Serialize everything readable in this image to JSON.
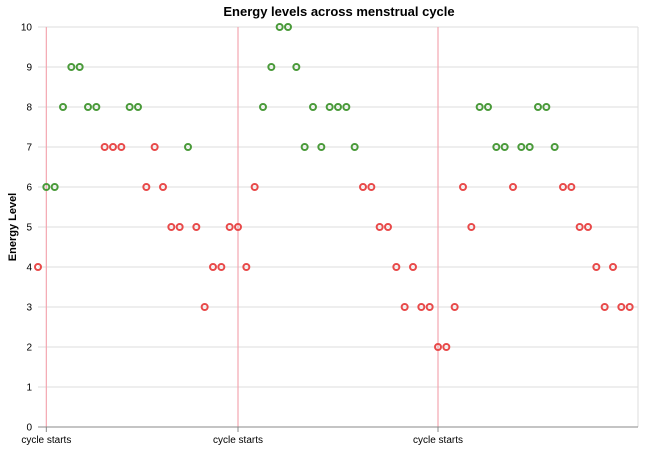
{
  "chart_data": {
    "type": "scatter",
    "title": "Energy levels across menstrual cycle",
    "xlabel": "",
    "ylabel": "Energy Level",
    "ylim": [
      0,
      10
    ],
    "yticks": [
      0,
      1,
      2,
      3,
      4,
      5,
      6,
      7,
      8,
      9,
      10
    ],
    "xlim": [
      0,
      72
    ],
    "grid": true,
    "cycle_starts": [
      1,
      24,
      48
    ],
    "cycle_start_label": "cycle starts",
    "colors": {
      "high": "#4a9a3a",
      "low": "#e84a4a",
      "cycle_rule": "#f4a6b0"
    },
    "points": [
      {
        "x": 0,
        "y": 4,
        "c": "low"
      },
      {
        "x": 1,
        "y": 6,
        "c": "high"
      },
      {
        "x": 2,
        "y": 6,
        "c": "high"
      },
      {
        "x": 3,
        "y": 8,
        "c": "high"
      },
      {
        "x": 4,
        "y": 9,
        "c": "high"
      },
      {
        "x": 5,
        "y": 9,
        "c": "high"
      },
      {
        "x": 6,
        "y": 8,
        "c": "high"
      },
      {
        "x": 7,
        "y": 8,
        "c": "high"
      },
      {
        "x": 8,
        "y": 7,
        "c": "low"
      },
      {
        "x": 9,
        "y": 7,
        "c": "low"
      },
      {
        "x": 10,
        "y": 7,
        "c": "low"
      },
      {
        "x": 11,
        "y": 8,
        "c": "high"
      },
      {
        "x": 12,
        "y": 8,
        "c": "high"
      },
      {
        "x": 13,
        "y": 6,
        "c": "low"
      },
      {
        "x": 14,
        "y": 7,
        "c": "low"
      },
      {
        "x": 15,
        "y": 6,
        "c": "low"
      },
      {
        "x": 16,
        "y": 5,
        "c": "low"
      },
      {
        "x": 17,
        "y": 5,
        "c": "low"
      },
      {
        "x": 18,
        "y": 7,
        "c": "high"
      },
      {
        "x": 19,
        "y": 5,
        "c": "low"
      },
      {
        "x": 20,
        "y": 3,
        "c": "low"
      },
      {
        "x": 21,
        "y": 4,
        "c": "low"
      },
      {
        "x": 22,
        "y": 4,
        "c": "low"
      },
      {
        "x": 23,
        "y": 5,
        "c": "low"
      },
      {
        "x": 24,
        "y": 5,
        "c": "low"
      },
      {
        "x": 25,
        "y": 4,
        "c": "low"
      },
      {
        "x": 26,
        "y": 6,
        "c": "low"
      },
      {
        "x": 27,
        "y": 8,
        "c": "high"
      },
      {
        "x": 28,
        "y": 9,
        "c": "high"
      },
      {
        "x": 29,
        "y": 10,
        "c": "high"
      },
      {
        "x": 30,
        "y": 10,
        "c": "high"
      },
      {
        "x": 31,
        "y": 9,
        "c": "high"
      },
      {
        "x": 32,
        "y": 7,
        "c": "high"
      },
      {
        "x": 33,
        "y": 8,
        "c": "high"
      },
      {
        "x": 34,
        "y": 7,
        "c": "high"
      },
      {
        "x": 35,
        "y": 8,
        "c": "high"
      },
      {
        "x": 36,
        "y": 8,
        "c": "high"
      },
      {
        "x": 37,
        "y": 8,
        "c": "high"
      },
      {
        "x": 38,
        "y": 7,
        "c": "high"
      },
      {
        "x": 39,
        "y": 6,
        "c": "low"
      },
      {
        "x": 40,
        "y": 6,
        "c": "low"
      },
      {
        "x": 41,
        "y": 5,
        "c": "low"
      },
      {
        "x": 42,
        "y": 5,
        "c": "low"
      },
      {
        "x": 43,
        "y": 4,
        "c": "low"
      },
      {
        "x": 44,
        "y": 3,
        "c": "low"
      },
      {
        "x": 45,
        "y": 4,
        "c": "low"
      },
      {
        "x": 46,
        "y": 3,
        "c": "low"
      },
      {
        "x": 47,
        "y": 3,
        "c": "low"
      },
      {
        "x": 48,
        "y": 2,
        "c": "low"
      },
      {
        "x": 49,
        "y": 2,
        "c": "low"
      },
      {
        "x": 50,
        "y": 3,
        "c": "low"
      },
      {
        "x": 51,
        "y": 6,
        "c": "low"
      },
      {
        "x": 52,
        "y": 5,
        "c": "low"
      },
      {
        "x": 53,
        "y": 8,
        "c": "high"
      },
      {
        "x": 54,
        "y": 8,
        "c": "high"
      },
      {
        "x": 55,
        "y": 7,
        "c": "high"
      },
      {
        "x": 56,
        "y": 7,
        "c": "high"
      },
      {
        "x": 57,
        "y": 6,
        "c": "low"
      },
      {
        "x": 58,
        "y": 7,
        "c": "high"
      },
      {
        "x": 59,
        "y": 7,
        "c": "high"
      },
      {
        "x": 60,
        "y": 8,
        "c": "high"
      },
      {
        "x": 61,
        "y": 8,
        "c": "high"
      },
      {
        "x": 62,
        "y": 7,
        "c": "high"
      },
      {
        "x": 63,
        "y": 6,
        "c": "low"
      },
      {
        "x": 64,
        "y": 6,
        "c": "low"
      },
      {
        "x": 65,
        "y": 5,
        "c": "low"
      },
      {
        "x": 66,
        "y": 5,
        "c": "low"
      },
      {
        "x": 67,
        "y": 4,
        "c": "low"
      },
      {
        "x": 68,
        "y": 3,
        "c": "low"
      },
      {
        "x": 69,
        "y": 4,
        "c": "low"
      },
      {
        "x": 70,
        "y": 3,
        "c": "low"
      },
      {
        "x": 71,
        "y": 3,
        "c": "low"
      }
    ]
  }
}
